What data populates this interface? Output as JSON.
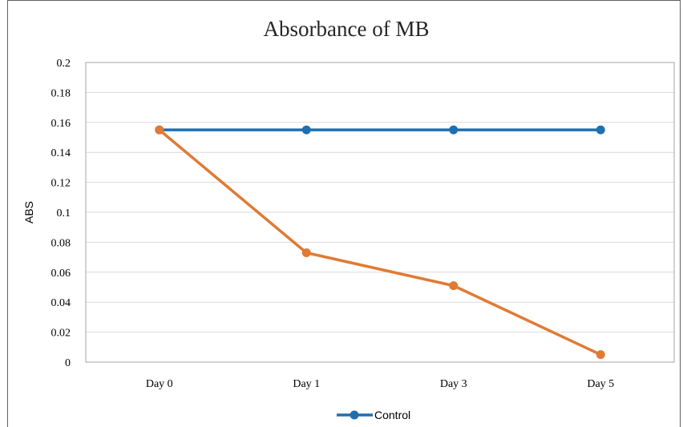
{
  "chart_data": {
    "type": "line",
    "title": "Absorbance of MB",
    "xlabel": "",
    "ylabel": "ABS",
    "categories": [
      "Day 0",
      "Day 1",
      "Day 3",
      "Day 5"
    ],
    "ylim": [
      0,
      0.2
    ],
    "yticks": [
      "0",
      "0.02",
      "0.04",
      "0.06",
      "0.08",
      "0.1",
      "0.12",
      "0.14",
      "0.16",
      "0.18",
      "0.2"
    ],
    "grid": true,
    "legend_position": "bottom",
    "series": [
      {
        "name": "Control",
        "color": "#1f6fb0",
        "values": [
          0.155,
          0.155,
          0.155,
          0.155
        ]
      },
      {
        "name": "",
        "color": "#e07a34",
        "values": [
          0.155,
          0.073,
          0.051,
          0.005
        ]
      }
    ]
  }
}
